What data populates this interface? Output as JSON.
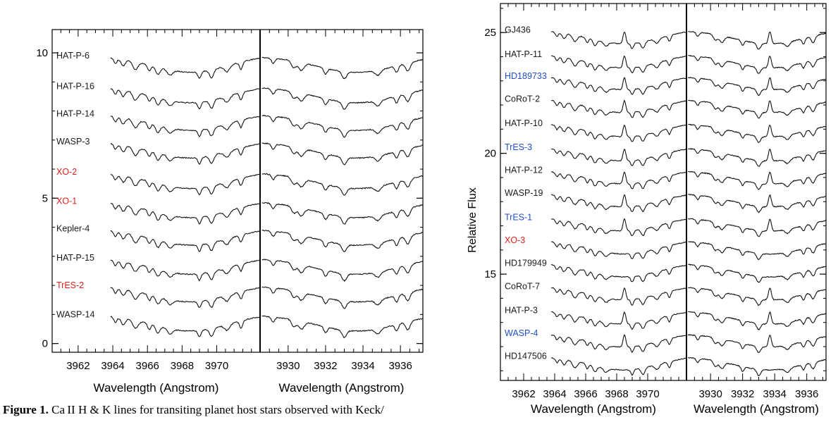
{
  "caption": {
    "label": "Figure 1.",
    "text": "Ca II H & K lines for transiting planet host stars observed with Keck/"
  },
  "colors": {
    "black": "#1a1a1a",
    "red": "#e0211a",
    "blue": "#1f4fc9"
  },
  "chart_data": [
    {
      "type": "line",
      "panels": [
        {
          "xlabel": "Wavelength (Angstrom)",
          "xlim": [
            3960.5,
            3972.5
          ],
          "xticks": [
            3962,
            3964,
            3966,
            3968,
            3970
          ],
          "line_center": 3968.5
        },
        {
          "xlabel": "Wavelength (Angstrom)",
          "xlim": [
            3928.5,
            3937.2
          ],
          "xticks": [
            3930,
            3932,
            3934,
            3936
          ],
          "line_center": 3933.7
        }
      ],
      "ylabel": "",
      "ylim": [
        -0.3,
        10.8
      ],
      "yticks": [
        0,
        5,
        10
      ],
      "series": [
        {
          "name": "HAT-P-6",
          "offset": 9.9,
          "color": "black"
        },
        {
          "name": "HAT-P-16",
          "offset": 8.85,
          "color": "black"
        },
        {
          "name": "HAT-P-14",
          "offset": 7.9,
          "color": "black"
        },
        {
          "name": "WASP-3",
          "offset": 6.95,
          "color": "black"
        },
        {
          "name": "XO-2",
          "offset": 5.9,
          "color": "red"
        },
        {
          "name": "XO-1",
          "offset": 4.9,
          "color": "red"
        },
        {
          "name": "Kepler-4",
          "offset": 3.95,
          "color": "black"
        },
        {
          "name": "HAT-P-15",
          "offset": 2.95,
          "color": "black"
        },
        {
          "name": "TrES-2",
          "offset": 2.0,
          "color": "red"
        },
        {
          "name": "WASP-14",
          "offset": 1.0,
          "color": "black"
        }
      ]
    },
    {
      "type": "line",
      "panels": [
        {
          "xlabel": "Wavelength (Angstrom)",
          "xlim": [
            3960.5,
            3972.5
          ],
          "xticks": [
            3962,
            3964,
            3966,
            3968,
            3970
          ],
          "line_center": 3968.5
        },
        {
          "xlabel": "Wavelength (Angstrom)",
          "xlim": [
            3928.5,
            3937.2
          ],
          "xticks": [
            3930,
            3932,
            3934,
            3936
          ],
          "line_center": 3933.7
        }
      ],
      "ylabel": "Relative Flux",
      "ylim": [
        10.6,
        26.2
      ],
      "yticks": [
        15,
        20,
        25
      ],
      "series": [
        {
          "name": "GJ436",
          "offset": 25.1,
          "color": "black",
          "emission": true
        },
        {
          "name": "HAT-P-11",
          "offset": 24.1,
          "color": "black",
          "emission": true
        },
        {
          "name": "HD189733",
          "offset": 23.2,
          "color": "blue",
          "emission": true
        },
        {
          "name": "CoRoT-2",
          "offset": 22.25,
          "color": "black",
          "emission": true
        },
        {
          "name": "HAT-P-10",
          "offset": 21.25,
          "color": "black",
          "emission": true
        },
        {
          "name": "TrES-3",
          "offset": 20.25,
          "color": "blue",
          "emission": true
        },
        {
          "name": "HAT-P-12",
          "offset": 19.3,
          "color": "black",
          "emission": true
        },
        {
          "name": "WASP-19",
          "offset": 18.35,
          "color": "black",
          "emission": true
        },
        {
          "name": "TrES-1",
          "offset": 17.35,
          "color": "blue",
          "emission": true
        },
        {
          "name": "XO-3",
          "offset": 16.4,
          "color": "red",
          "emission": false
        },
        {
          "name": "HD179949",
          "offset": 15.45,
          "color": "black",
          "emission": false
        },
        {
          "name": "CoRoT-7",
          "offset": 14.5,
          "color": "black",
          "emission": true
        },
        {
          "name": "HAT-P-3",
          "offset": 13.5,
          "color": "black",
          "emission": true
        },
        {
          "name": "WASP-4",
          "offset": 12.55,
          "color": "blue",
          "emission": true
        },
        {
          "name": "HD147506",
          "offset": 11.6,
          "color": "black",
          "emission": false
        }
      ]
    }
  ]
}
